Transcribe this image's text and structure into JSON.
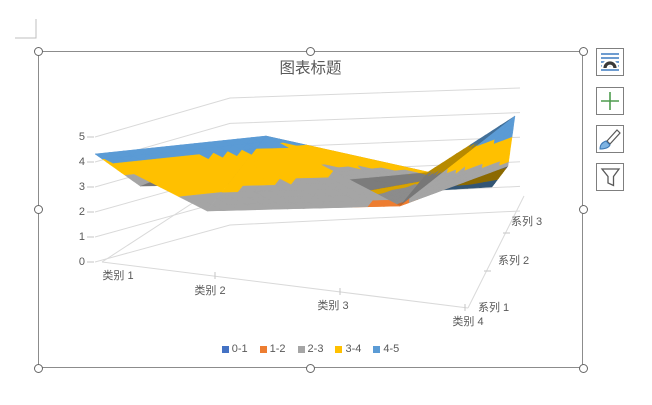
{
  "chart": {
    "title": "图表标题",
    "value_axis_ticks": [
      "5",
      "4",
      "3",
      "2",
      "1",
      "0"
    ],
    "category_labels": [
      "类别 1",
      "类别 2",
      "类别 3",
      "类别 4"
    ],
    "series_labels": [
      "系列 1",
      "系列 2",
      "系列 3"
    ],
    "label_color": "#595959",
    "gridline_color": "#D9D9D9",
    "tick_color": "#C6C6C6"
  },
  "chart_data": {
    "type": "surface3d",
    "title": "图表标题",
    "categories": [
      "类别 1",
      "类别 2",
      "类别 3",
      "类别 4"
    ],
    "series": [
      {
        "name": "系列 1",
        "values": [
          4.3,
          2.5,
          3.5,
          4.5
        ]
      },
      {
        "name": "系列 2",
        "values": [
          2.4,
          4.4,
          1.8,
          2.8
        ]
      },
      {
        "name": "系列 3",
        "values": [
          2.0,
          2.0,
          3.0,
          5.0
        ]
      }
    ],
    "value_axis_range": [
      0,
      5
    ],
    "legend_position": "bottom",
    "bands": [
      {
        "label": "0-1",
        "color": "#4472C4"
      },
      {
        "label": "1-2",
        "color": "#ED7D31"
      },
      {
        "label": "2-3",
        "color": "#A5A5A5"
      },
      {
        "label": "3-4",
        "color": "#FFC000"
      },
      {
        "label": "4-5",
        "color": "#5B9BD5"
      }
    ]
  },
  "toolbar": {
    "buttons": [
      {
        "icon": "layout-options-icon",
        "name": "layout-options"
      },
      {
        "icon": "add-chart-elements-icon",
        "name": "chart-elements"
      },
      {
        "icon": "chart-styles-icon",
        "name": "chart-styles"
      },
      {
        "icon": "chart-filters-icon",
        "name": "chart-filters"
      }
    ]
  }
}
